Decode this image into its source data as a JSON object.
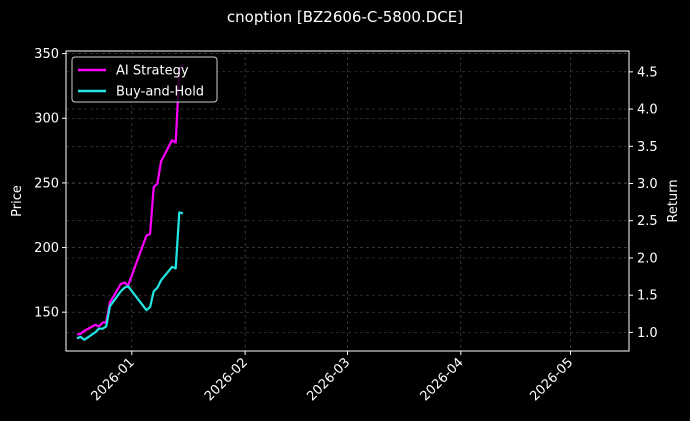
{
  "chart_data": {
    "type": "line",
    "title": "cnoption [BZ2606-C-5800.DCE]",
    "xlabel": "",
    "ylabel": "Price",
    "y2label": "Return",
    "x_ticks": [
      "2026-01",
      "2026-02",
      "2026-03",
      "2026-04",
      "2026-05"
    ],
    "y_ticks": [
      150,
      200,
      250,
      300,
      350
    ],
    "y2_ticks": [
      "1.0",
      "1.5",
      "2.0",
      "2.5",
      "3.0",
      "3.5",
      "4.0",
      "4.5"
    ],
    "ylim": [
      120,
      352
    ],
    "y2lim": [
      0.75,
      4.78
    ],
    "grid": true,
    "legend_position": "upper left",
    "series": [
      {
        "name": "AI Strategy",
        "axis": "return",
        "color": "#ff00ff",
        "x": [
          "2025-12-17",
          "2025-12-18",
          "2025-12-19",
          "2025-12-22",
          "2025-12-23",
          "2025-12-24",
          "2025-12-25",
          "2025-12-26",
          "2025-12-29",
          "2025-12-30",
          "2025-12-31",
          "2026-01-05",
          "2026-01-06",
          "2026-01-07",
          "2026-01-08",
          "2026-01-09",
          "2026-01-12",
          "2026-01-13",
          "2026-01-14",
          "2026-01-15"
        ],
        "values": [
          0.97,
          0.98,
          1.02,
          1.1,
          1.08,
          1.13,
          1.14,
          1.4,
          1.65,
          1.67,
          1.63,
          2.3,
          2.32,
          2.95,
          3.0,
          3.3,
          3.58,
          3.55,
          4.5,
          4.6
        ]
      },
      {
        "name": "Buy-and-Hold",
        "axis": "return",
        "color": "#22e6e6",
        "x": [
          "2025-12-17",
          "2025-12-18",
          "2025-12-19",
          "2025-12-22",
          "2025-12-23",
          "2025-12-24",
          "2025-12-25",
          "2025-12-26",
          "2025-12-29",
          "2025-12-30",
          "2025-12-31",
          "2026-01-05",
          "2026-01-06",
          "2026-01-07",
          "2026-01-08",
          "2026-01-09",
          "2026-01-12",
          "2026-01-13",
          "2026-01-14",
          "2026-01-15"
        ],
        "values": [
          0.92,
          0.94,
          0.9,
          1.0,
          1.05,
          1.05,
          1.08,
          1.35,
          1.55,
          1.6,
          1.62,
          1.3,
          1.34,
          1.55,
          1.6,
          1.7,
          1.88,
          1.86,
          2.61,
          2.6
        ]
      }
    ]
  }
}
